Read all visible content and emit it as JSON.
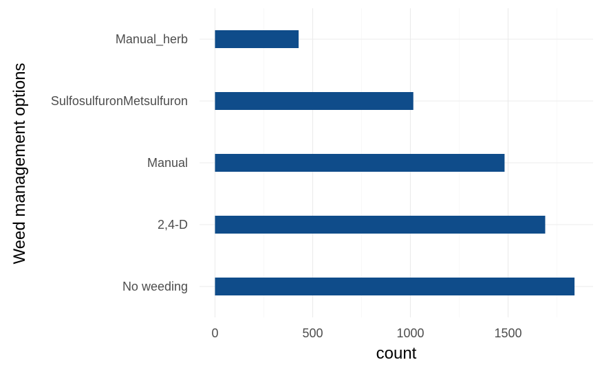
{
  "chart_data": {
    "type": "bar",
    "orientation": "horizontal",
    "categories": [
      "No weeding",
      "2,4-D",
      "Manual",
      "SulfosulfuronMetsulfuron",
      "Manual_herb"
    ],
    "values": [
      1840,
      1690,
      1482,
      1015,
      428
    ],
    "xlabel": "count",
    "ylabel": "Weed management options",
    "xlim": [
      0,
      1940
    ],
    "x_ticks": [
      0,
      500,
      1000,
      1500
    ],
    "x_tick_labels": [
      "0",
      "500",
      "1000",
      "1500"
    ],
    "grid": true,
    "bar_color": "#0f4c8a",
    "theme": "minimal"
  }
}
